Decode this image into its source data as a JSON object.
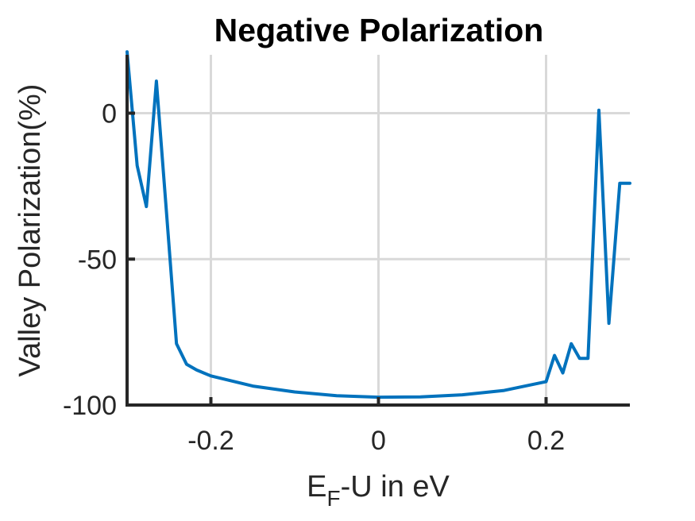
{
  "chart_data": {
    "type": "line",
    "title": "Negative Polarization",
    "xlabel": {
      "base": "E",
      "sub": "F",
      "rest": "-U in eV"
    },
    "ylabel": "Valley Polarization(%)",
    "xlim": [
      -0.3,
      0.3
    ],
    "ylim": [
      -100,
      20
    ],
    "xticks": [
      -0.2,
      0,
      0.2
    ],
    "xtick_labels": [
      "-0.2",
      "0",
      "0.2"
    ],
    "yticks": [
      -100,
      -50,
      0
    ],
    "ytick_labels": [
      "-100",
      "-50",
      "0"
    ],
    "grid": true,
    "color": "#0072BD",
    "series": [
      {
        "x": [
          -0.3,
          -0.288,
          -0.277,
          -0.265,
          -0.253,
          -0.241,
          -0.229,
          -0.217,
          -0.2,
          -0.15,
          -0.1,
          -0.05,
          0.0,
          0.05,
          0.1,
          0.15,
          0.2,
          0.21,
          0.22,
          0.23,
          0.24,
          0.25,
          0.263,
          0.275,
          0.288,
          0.3
        ],
        "y": [
          21,
          -18,
          -32,
          11,
          -34,
          -79,
          -86,
          -88,
          -90,
          -93.5,
          -95.5,
          -96.8,
          -97.3,
          -97.2,
          -96.5,
          -95,
          -92,
          -83,
          -89,
          -79,
          -84,
          -84,
          1,
          -72,
          -24,
          -24
        ]
      }
    ]
  }
}
